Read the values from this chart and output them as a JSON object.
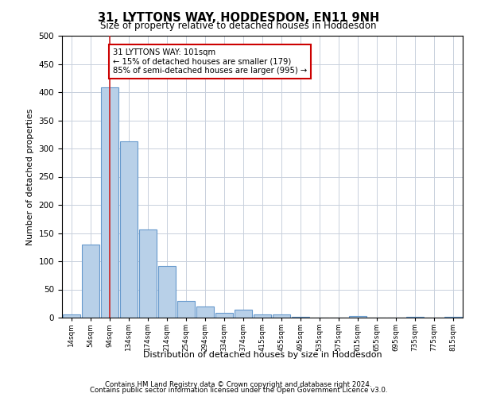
{
  "title": "31, LYTTONS WAY, HODDESDON, EN11 9NH",
  "subtitle": "Size of property relative to detached houses in Hoddesdon",
  "xlabel": "Distribution of detached houses by size in Hoddesdon",
  "ylabel": "Number of detached properties",
  "bar_values": [
    6,
    130,
    409,
    312,
    157,
    92,
    30,
    20,
    8,
    14,
    5,
    6,
    2,
    0,
    0,
    3,
    0,
    0,
    2,
    0,
    2
  ],
  "x_tick_labels": [
    "14sqm",
    "54sqm",
    "94sqm",
    "134sqm",
    "174sqm",
    "214sqm",
    "254sqm",
    "294sqm",
    "334sqm",
    "374sqm",
    "415sqm",
    "455sqm",
    "495sqm",
    "535sqm",
    "575sqm",
    "615sqm",
    "655sqm",
    "695sqm",
    "735sqm",
    "775sqm",
    "815sqm"
  ],
  "bar_color": "#b8d0e8",
  "bar_edge_color": "#6699cc",
  "vline_x": 2,
  "vline_color": "#cc2222",
  "annotation_text": "31 LYTTONS WAY: 101sqm\n← 15% of detached houses are smaller (179)\n85% of semi-detached houses are larger (995) →",
  "annotation_box_color": "#ffffff",
  "annotation_box_edgecolor": "#cc0000",
  "ylim": [
    0,
    500
  ],
  "yticks": [
    0,
    50,
    100,
    150,
    200,
    250,
    300,
    350,
    400,
    450,
    500
  ],
  "footer1": "Contains HM Land Registry data © Crown copyright and database right 2024.",
  "footer2": "Contains public sector information licensed under the Open Government Licence v3.0.",
  "background_color": "#ffffff",
  "grid_color": "#c8d0dc"
}
